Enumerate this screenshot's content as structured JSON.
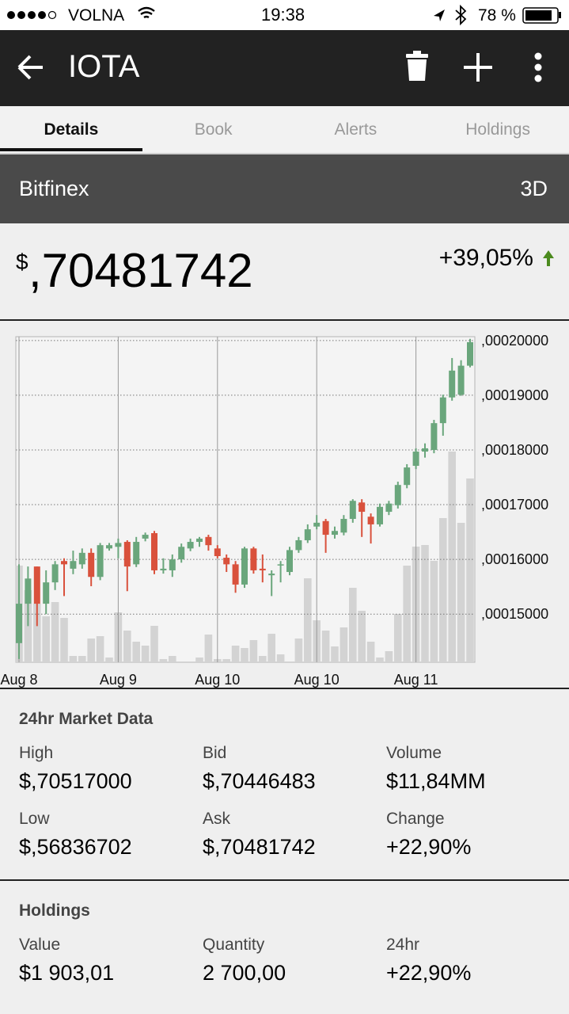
{
  "status_bar": {
    "carrier": "VOLNA",
    "time": "19:38",
    "battery": "78 %"
  },
  "app_bar": {
    "title": "IOTA"
  },
  "tabs": [
    "Details",
    "Book",
    "Alerts",
    "Holdings"
  ],
  "active_tab": 0,
  "exchange": {
    "name": "Bitfinex",
    "range": "3D"
  },
  "price": {
    "currency": "$",
    "value": ",70481742",
    "change": "+39,05%"
  },
  "chart_data": {
    "type": "candlestick",
    "categories": [
      "Aug 8",
      null,
      null,
      null,
      null,
      null,
      null,
      null,
      null,
      null,
      null,
      "Aug 9",
      null,
      null,
      null,
      null,
      null,
      null,
      null,
      null,
      null,
      null,
      "Aug 10",
      null,
      null,
      null,
      null,
      null,
      null,
      null,
      null,
      null,
      null,
      "Aug 10",
      null,
      null,
      null,
      null,
      null,
      null,
      null,
      null,
      null,
      null,
      "Aug 11",
      null,
      null,
      null,
      null,
      null,
      null
    ],
    "open": [
      0.0001447,
      0.0001519,
      0.0001587,
      0.0001519,
      0.0001558,
      0.0001597,
      0.0001583,
      0.0001591,
      0.0001612,
      0.0001568,
      0.000162,
      0.0001623,
      0.0001632,
      0.0001591,
      0.0001638,
      0.0001648,
      0.000158,
      0.000158,
      0.00016,
      0.000162,
      0.0001632,
      0.0001641,
      0.000162,
      0.0001603,
      0.0001591,
      0.0001554,
      0.000162,
      0.0001583,
      0.0001571,
      0.0001589,
      0.0001577,
      0.0001617,
      0.0001635,
      0.000166,
      0.000167,
      0.0001645,
      0.0001649,
      0.0001674,
      0.0001704,
      0.0001678,
      0.0001664,
      0.0001687,
      0.0001699,
      0.0001736,
      0.0001771,
      0.0001797,
      0.00018,
      0.0001849,
      0.0001896,
      0.0001901,
      0.0001954
    ],
    "high": [
      0.0001591,
      0.0001587,
      0.0001587,
      0.000158,
      0.0001597,
      0.0001602,
      0.0001616,
      0.000162,
      0.000162,
      0.000163,
      0.000163,
      0.0001638,
      0.0001635,
      0.0001641,
      0.0001649,
      0.0001652,
      0.0001602,
      0.0001609,
      0.0001629,
      0.0001638,
      0.0001641,
      0.0001645,
      0.0001626,
      0.0001609,
      0.0001597,
      0.0001623,
      0.0001623,
      0.0001609,
      0.000158,
      0.0001597,
      0.0001623,
      0.0001641,
      0.0001664,
      0.0001681,
      0.0001674,
      0.000166,
      0.0001681,
      0.000171,
      0.000171,
      0.0001684,
      0.0001702,
      0.0001707,
      0.0001742,
      0.0001774,
      0.0001803,
      0.0001812,
      0.0001855,
      0.0001901,
      0.0001968,
      0.0001964,
      0.0002003
    ],
    "low": [
      0.0001418,
      0.0001478,
      0.0001478,
      0.00015,
      0.0001544,
      0.0001533,
      0.0001573,
      0.0001583,
      0.0001551,
      0.0001562,
      0.0001616,
      0.0001602,
      0.0001542,
      0.0001586,
      0.0001633,
      0.0001573,
      0.0001574,
      0.0001568,
      0.0001594,
      0.0001615,
      0.0001623,
      0.0001616,
      0.0001602,
      0.0001577,
      0.0001539,
      0.0001548,
      0.0001574,
      0.0001558,
      0.0001533,
      0.0001558,
      0.0001571,
      0.0001612,
      0.000163,
      0.0001655,
      0.0001612,
      0.0001638,
      0.0001644,
      0.0001667,
      0.0001641,
      0.0001629,
      0.000166,
      0.0001681,
      0.0001693,
      0.000173,
      0.0001765,
      0.0001786,
      0.0001794,
      0.0001826,
      0.000189,
      0.0001899,
      0.0001951
    ],
    "close": [
      0.0001519,
      0.0001565,
      0.0001519,
      0.0001558,
      0.0001591,
      0.0001591,
      0.0001597,
      0.0001612,
      0.0001568,
      0.0001626,
      0.0001626,
      0.000163,
      0.0001587,
      0.0001632,
      0.0001645,
      0.000158,
      0.0001583,
      0.00016,
      0.0001623,
      0.0001632,
      0.0001638,
      0.0001626,
      0.0001606,
      0.0001591,
      0.0001554,
      0.000162,
      0.000158,
      0.000158,
      0.0001574,
      0.0001591,
      0.0001617,
      0.0001635,
      0.0001655,
      0.0001667,
      0.0001645,
      0.0001652,
      0.0001674,
      0.0001707,
      0.0001687,
      0.0001664,
      0.0001696,
      0.0001702,
      0.0001736,
      0.0001768,
      0.0001797,
      0.0001803,
      0.0001849,
      0.0001896,
      0.0001945,
      0.0001954,
      0.0001997
    ],
    "volume": [
      122,
      91,
      74,
      58,
      76,
      56,
      8,
      8,
      30,
      33,
      6,
      63,
      40,
      26,
      21,
      46,
      4,
      8,
      0,
      0,
      6,
      35,
      4,
      4,
      21,
      18,
      28,
      8,
      36,
      10,
      0,
      30,
      106,
      53,
      40,
      20,
      44,
      94,
      65,
      26,
      6,
      14,
      61,
      122,
      146,
      148,
      128,
      182,
      266,
      176,
      232
    ],
    "up_color": "#6aa67c",
    "down_color": "#d9513c",
    "volume_color": "#d3d3d3",
    "ylim": [
      0.0001412,
      0.0002007
    ],
    "yticks": [
      {
        "value": 0.00015,
        "label": ",00015000"
      },
      {
        "value": 0.00016,
        "label": ",00016000"
      },
      {
        "value": 0.00017,
        "label": ",00017000"
      },
      {
        "value": 0.00018,
        "label": ",00018000"
      },
      {
        "value": 0.00019,
        "label": ",00019000"
      },
      {
        "value": 0.0002,
        "label": ",00020000"
      }
    ],
    "y2lim": [
      0,
      411
    ],
    "grid": true
  },
  "market_data": {
    "title": "24hr Market Data",
    "items": [
      {
        "label": "High",
        "value": "$,70517000"
      },
      {
        "label": "Bid",
        "value": "$,70446483"
      },
      {
        "label": "Volume",
        "value": "$11,84MM"
      },
      {
        "label": "Low",
        "value": "$,56836702"
      },
      {
        "label": "Ask",
        "value": "$,70481742"
      },
      {
        "label": "Change",
        "value": "+22,90%"
      }
    ]
  },
  "holdings": {
    "title": "Holdings",
    "items": [
      {
        "label": "Value",
        "value": "$1 903,01"
      },
      {
        "label": "Quantity",
        "value": "2 700,00"
      },
      {
        "label": "24hr",
        "value": "+22,90%"
      }
    ]
  }
}
